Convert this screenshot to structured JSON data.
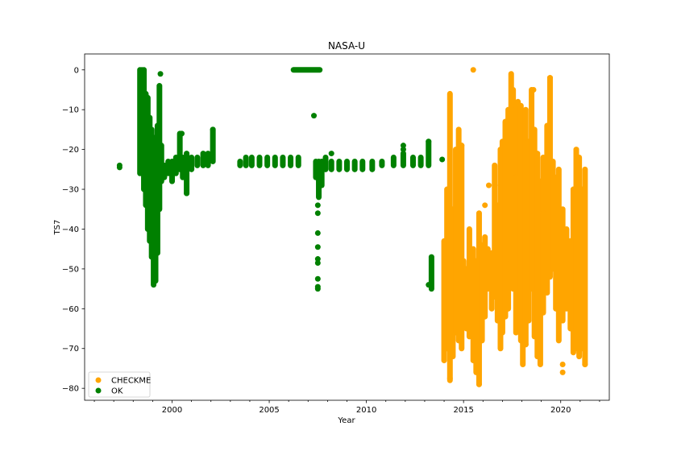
{
  "chart_data": {
    "type": "scatter",
    "title": "NASA-U",
    "xlabel": "Year",
    "ylabel": "TS7",
    "xlim": [
      1995.5,
      2022.5
    ],
    "ylim": [
      -83,
      4
    ],
    "xticks": [
      2000,
      2005,
      2010,
      2015,
      2020
    ],
    "yticks": [
      0,
      -10,
      -20,
      -30,
      -40,
      -50,
      -60,
      -70,
      -80
    ],
    "grid": false,
    "legend_position": "lower-left",
    "series": [
      {
        "name": "CHECKME",
        "color": "#ffa500",
        "segments": [
          [
            2014.0,
            -73,
            -43
          ],
          [
            2014.15,
            -70,
            -30
          ],
          [
            2014.3,
            -78,
            -6
          ],
          [
            2014.45,
            -72,
            -35
          ],
          [
            2014.6,
            -66,
            -20
          ],
          [
            2014.75,
            -68,
            -15
          ],
          [
            2014.9,
            -70,
            -19
          ],
          [
            2015.0,
            -63,
            -48
          ],
          [
            2015.15,
            -65,
            -50
          ],
          [
            2015.3,
            -67,
            -40
          ],
          [
            2015.5,
            -73,
            -45
          ],
          [
            2015.65,
            -76,
            -48
          ],
          [
            2015.8,
            -79,
            -36
          ],
          [
            2015.95,
            -68,
            -44
          ],
          [
            2016.1,
            -62,
            -42
          ],
          [
            2016.25,
            -55,
            -45
          ],
          [
            2016.45,
            -60,
            -46
          ],
          [
            2016.6,
            -57,
            -24
          ],
          [
            2016.75,
            -63,
            -34
          ],
          [
            2016.9,
            -70,
            -20
          ],
          [
            2017.0,
            -66,
            -18
          ],
          [
            2017.15,
            -62,
            -13
          ],
          [
            2017.3,
            -60,
            -10
          ],
          [
            2017.45,
            -48,
            -1
          ],
          [
            2017.55,
            -55,
            -5
          ],
          [
            2017.7,
            -66,
            -10
          ],
          [
            2017.8,
            -60,
            -8
          ],
          [
            2017.95,
            -68,
            -9
          ],
          [
            2018.05,
            -74,
            -15
          ],
          [
            2018.2,
            -69,
            -10
          ],
          [
            2018.35,
            -63,
            -18
          ],
          [
            2018.5,
            -55,
            -5
          ],
          [
            2018.65,
            -67,
            -15
          ],
          [
            2018.8,
            -72,
            -21
          ],
          [
            2018.95,
            -74,
            -28
          ],
          [
            2019.1,
            -61,
            -22
          ],
          [
            2019.3,
            -56,
            -14
          ],
          [
            2019.45,
            -52,
            -2
          ],
          [
            2019.6,
            -50,
            -23
          ],
          [
            2019.75,
            -60,
            -27
          ],
          [
            2019.9,
            -68,
            -25
          ],
          [
            2020.1,
            -63,
            -35
          ],
          [
            2020.3,
            -60,
            -40
          ],
          [
            2020.5,
            -65,
            -43
          ],
          [
            2020.65,
            -71,
            -30
          ],
          [
            2020.8,
            -70,
            -20
          ],
          [
            2020.95,
            -72,
            -22
          ],
          [
            2021.1,
            -70,
            -30
          ],
          [
            2021.25,
            -74,
            -25
          ]
        ],
        "points": [
          [
            2015.5,
            0
          ],
          [
            2014.3,
            -77.5
          ],
          [
            2016.6,
            -29
          ],
          [
            2014.9,
            -19
          ],
          [
            2017.7,
            -27
          ],
          [
            2018.2,
            -69
          ],
          [
            2019.45,
            -2
          ],
          [
            2020.1,
            -74
          ],
          [
            2020.1,
            -76
          ],
          [
            2015.8,
            -79
          ],
          [
            2016.1,
            -34
          ],
          [
            2016.3,
            -29
          ],
          [
            2018.6,
            -5
          ],
          [
            2019.1,
            -36
          ],
          [
            2021.25,
            -74
          ]
        ]
      },
      {
        "name": "OK",
        "color": "#008000",
        "segments": [
          [
            1998.35,
            -26,
            0
          ],
          [
            1998.45,
            -20,
            0
          ],
          [
            1998.55,
            -30,
            0
          ],
          [
            1998.65,
            -34,
            -6
          ],
          [
            1998.75,
            -40,
            -7
          ],
          [
            1998.85,
            -43,
            -12
          ],
          [
            1998.95,
            -47,
            -15
          ],
          [
            1999.05,
            -54,
            -17
          ],
          [
            1999.15,
            -53,
            -20
          ],
          [
            1999.25,
            -46,
            -14
          ],
          [
            1999.35,
            -35,
            -4
          ],
          [
            1999.45,
            -28,
            -19
          ],
          [
            1999.6,
            -27,
            -24
          ],
          [
            1999.8,
            -26,
            -23
          ],
          [
            2000.0,
            -28,
            -23
          ],
          [
            2000.2,
            -26,
            -22
          ],
          [
            2000.4,
            -25,
            -16
          ],
          [
            2000.55,
            -27,
            -22
          ],
          [
            2000.75,
            -31,
            -21
          ],
          [
            2001.0,
            -25,
            -22
          ],
          [
            2001.3,
            -24,
            -22
          ],
          [
            2001.6,
            -24,
            -21
          ],
          [
            2001.85,
            -24,
            -21
          ],
          [
            2002.1,
            -23,
            -15
          ],
          [
            2003.5,
            -24,
            -23
          ],
          [
            2003.8,
            -24,
            -22
          ],
          [
            2004.1,
            -24,
            -22
          ],
          [
            2004.5,
            -24,
            -22
          ],
          [
            2004.9,
            -24,
            -22
          ],
          [
            2005.3,
            -24,
            -22
          ],
          [
            2005.7,
            -24,
            -22
          ],
          [
            2006.1,
            -24,
            -22
          ],
          [
            2006.5,
            -24,
            -22
          ],
          [
            2007.4,
            -27,
            -23
          ],
          [
            2007.55,
            -32,
            -23
          ],
          [
            2007.7,
            -29,
            -23
          ],
          [
            2007.9,
            -25,
            -22
          ],
          [
            2008.2,
            -25,
            -23
          ],
          [
            2008.6,
            -25,
            -23
          ],
          [
            2009.0,
            -25,
            -23
          ],
          [
            2009.4,
            -25,
            -23
          ],
          [
            2009.8,
            -25,
            -23
          ],
          [
            2010.3,
            -25,
            -23
          ],
          [
            2010.8,
            -24,
            -23
          ],
          [
            2011.4,
            -24,
            -22
          ],
          [
            2011.9,
            -24,
            -21
          ],
          [
            2012.4,
            -24,
            -22
          ],
          [
            2012.8,
            -24,
            -22
          ],
          [
            2013.2,
            -24,
            -18
          ],
          [
            2013.35,
            -55,
            -47
          ]
        ],
        "flat": [
          [
            2006.25,
            2007.6,
            0
          ]
        ],
        "points": [
          [
            1997.3,
            -24
          ],
          [
            1997.3,
            -24.5
          ],
          [
            1999.4,
            -1
          ],
          [
            2007.3,
            -11.5
          ],
          [
            2008.2,
            -21
          ],
          [
            2007.5,
            -34
          ],
          [
            2007.5,
            -36
          ],
          [
            2007.5,
            -41
          ],
          [
            2007.5,
            -44.5
          ],
          [
            2007.5,
            -47.5
          ],
          [
            2007.5,
            -48.5
          ],
          [
            2007.5,
            -52.5
          ],
          [
            2007.5,
            -54.5
          ],
          [
            2007.5,
            -55
          ],
          [
            2000.75,
            -31
          ],
          [
            2000.5,
            -16
          ],
          [
            2002.1,
            -15
          ],
          [
            2011.9,
            -19
          ],
          [
            2011.9,
            -20
          ],
          [
            2013.2,
            -18
          ],
          [
            2013.2,
            -54
          ],
          [
            2013.9,
            -22.5
          ]
        ]
      }
    ]
  }
}
